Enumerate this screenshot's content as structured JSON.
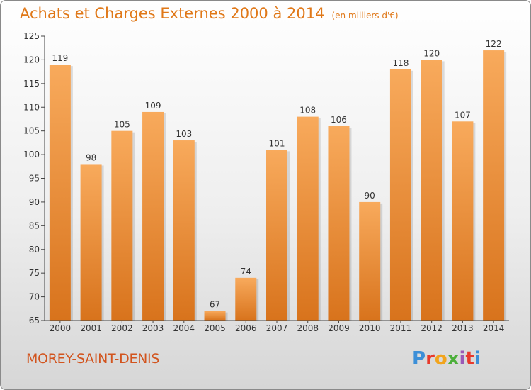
{
  "header": {
    "title": "Achats et Charges Externes 2000 à 2014",
    "unit_note": "(en milliers d'€)"
  },
  "footer": {
    "city": "MOREY-SAINT-DENIS",
    "logo_text": "Proxiti",
    "logo_colors": [
      "#3c8fd8",
      "#e8392b",
      "#f2a41c",
      "#4caf3a",
      "#9b59b6",
      "#e8392b",
      "#3c8fd8"
    ]
  },
  "colors": {
    "bar_light": "#f8aa5c",
    "bar_dark": "#d8731c",
    "title": "#e07818",
    "city": "#d2541e"
  },
  "chart_data": {
    "type": "bar",
    "title": "Achats et Charges Externes 2000 à 2014",
    "subtitle": "(en milliers d'€)",
    "categories": [
      "2000",
      "2001",
      "2002",
      "2003",
      "2004",
      "2005",
      "2006",
      "2007",
      "2008",
      "2009",
      "2010",
      "2011",
      "2012",
      "2013",
      "2014"
    ],
    "values": [
      119,
      98,
      105,
      109,
      103,
      67,
      74,
      101,
      108,
      106,
      90,
      118,
      120,
      107,
      122
    ],
    "ylim": [
      65,
      125
    ],
    "yticks": [
      65,
      70,
      75,
      80,
      85,
      90,
      95,
      100,
      105,
      110,
      115,
      120,
      125
    ],
    "grid": false,
    "xlabel": "",
    "ylabel": ""
  }
}
